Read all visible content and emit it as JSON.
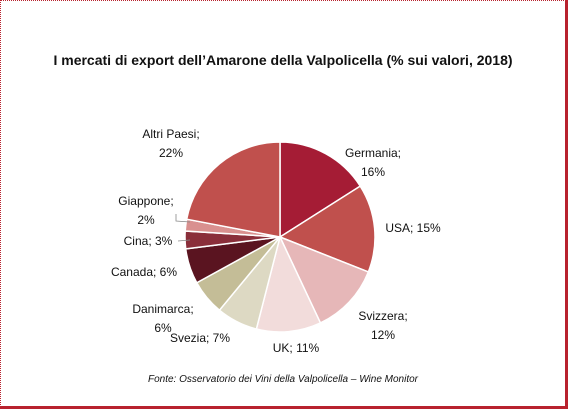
{
  "title": "I mercati di export dell’Amarone della Valpolicella (% sui valori, 2018)",
  "source": "Fonte: Osservatorio dei Vini della Valpolicella – Wine Monitor",
  "chart_data": {
    "type": "pie",
    "title": "I mercati di export dell’Amarone della Valpolicella (% sui valori, 2018)",
    "unit": "%",
    "slices": [
      {
        "name": "Germania",
        "value": 16,
        "color": "#a51c35",
        "label_lines": [
          "Germania;",
          "16%"
        ]
      },
      {
        "name": "USA",
        "value": 15,
        "color": "#c0504d",
        "label_lines": [
          "USA; 15%"
        ]
      },
      {
        "name": "Svizzera",
        "value": 12,
        "color": "#e6b7b8",
        "label_lines": [
          "Svizzera;",
          "12%"
        ]
      },
      {
        "name": "UK",
        "value": 11,
        "color": "#f2dcdb",
        "label_lines": [
          "UK; 11%"
        ]
      },
      {
        "name": "Svezia",
        "value": 7,
        "color": "#ddd9c3",
        "label_lines": [
          "Svezia; 7%"
        ]
      },
      {
        "name": "Danimarca",
        "value": 6,
        "color": "#c4bd97",
        "label_lines": [
          "Danimarca;",
          "6%"
        ]
      },
      {
        "name": "Canada",
        "value": 6,
        "color": "#5a1420",
        "label_lines": [
          "Canada; 6%"
        ]
      },
      {
        "name": "Cina",
        "value": 3,
        "color": "#8a2e3a",
        "label_lines": [
          "Cina; 3%"
        ]
      },
      {
        "name": "Giappone",
        "value": 2,
        "color": "#d9908f",
        "label_lines": [
          "Giappone;",
          "2%"
        ]
      },
      {
        "name": "Altri Paesi",
        "value": 22,
        "color": "#c0504d",
        "label_lines": [
          "Altri Paesi;",
          "22%"
        ]
      }
    ]
  }
}
